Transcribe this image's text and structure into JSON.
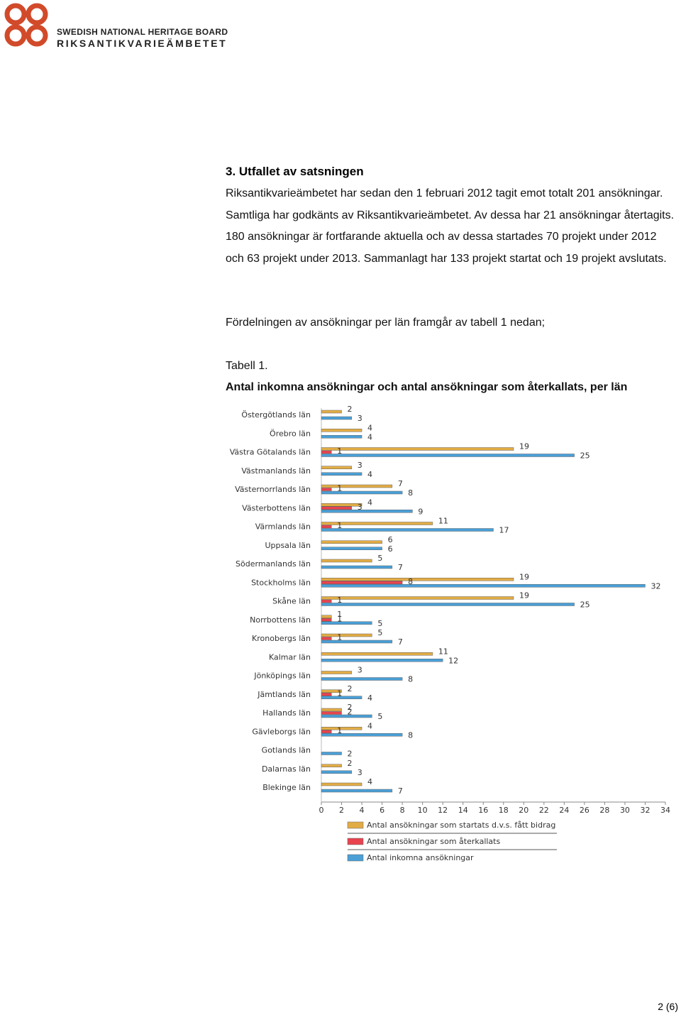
{
  "header": {
    "logo_line1": "SWEDISH NATIONAL HERITAGE BOARD",
    "logo_line2": "RIKSANTIKVARIEÄMBETET"
  },
  "section": {
    "heading": "3. Utfallet av satsningen",
    "paragraphs": [
      "Riksantikvarieämbetet har sedan den 1 februari 2012 tagit emot totalt 201 ansökningar. Samtliga har godkänts av Riksantikvarieämbetet. Av dessa har 21 ansökningar återtagits. 180 ansökningar är fortfarande aktuella och av dessa startades 70 projekt under 2012 och 63 projekt under 2013. Sammanlagt har 133 projekt startat och 19 projekt avslutats.",
      "Fördelningen av ansökningar per län framgår av tabell 1 nedan;"
    ]
  },
  "table_caption": {
    "label": "Tabell 1.",
    "title": "Antal inkomna ansökningar och antal ansökningar som återkallats, per län"
  },
  "chart_data": {
    "type": "hbar",
    "categories": [
      "Östergötlands län",
      "Örebro län",
      "Västra Götalands län",
      "Västmanlands län",
      "Västernorrlands län",
      "Västerbottens län",
      "Värmlands län",
      "Uppsala län",
      "Södermanlands län",
      "Stockholms län",
      "Skåne län",
      "Norrbottens län",
      "Kronobergs län",
      "Kalmar län",
      "Jönköpings län",
      "Jämtlands län",
      "Hallands län",
      "Gävleborgs län",
      "Gotlands län",
      "Dalarnas län",
      "Blekinge län"
    ],
    "series": [
      {
        "name": "Antal ansökningar som startats d.v.s. fått bidrag",
        "color": "#e2ac45",
        "values": [
          2,
          4,
          19,
          3,
          7,
          4,
          11,
          6,
          5,
          19,
          19,
          1,
          5,
          11,
          3,
          2,
          2,
          4,
          null,
          2,
          4
        ]
      },
      {
        "name": "Antal ansökningar som återkallats",
        "color": "#e8434f",
        "values": [
          null,
          null,
          1,
          null,
          1,
          3,
          1,
          null,
          null,
          8,
          1,
          1,
          1,
          null,
          null,
          1,
          2,
          1,
          null,
          null,
          null
        ]
      },
      {
        "name": "Antal inkomna ansökningar",
        "color": "#4a9fd6",
        "values": [
          3,
          4,
          25,
          4,
          8,
          9,
          17,
          6,
          7,
          32,
          25,
          5,
          7,
          12,
          8,
          4,
          5,
          8,
          2,
          3,
          7
        ]
      }
    ],
    "xlim": [
      0,
      34
    ],
    "xticks": [
      0,
      2,
      4,
      6,
      8,
      10,
      12,
      14,
      16,
      18,
      20,
      22,
      24,
      26,
      28,
      30,
      32,
      34
    ],
    "grid": false,
    "legend": "bottom"
  },
  "footer": {
    "page": "2 (6)"
  }
}
